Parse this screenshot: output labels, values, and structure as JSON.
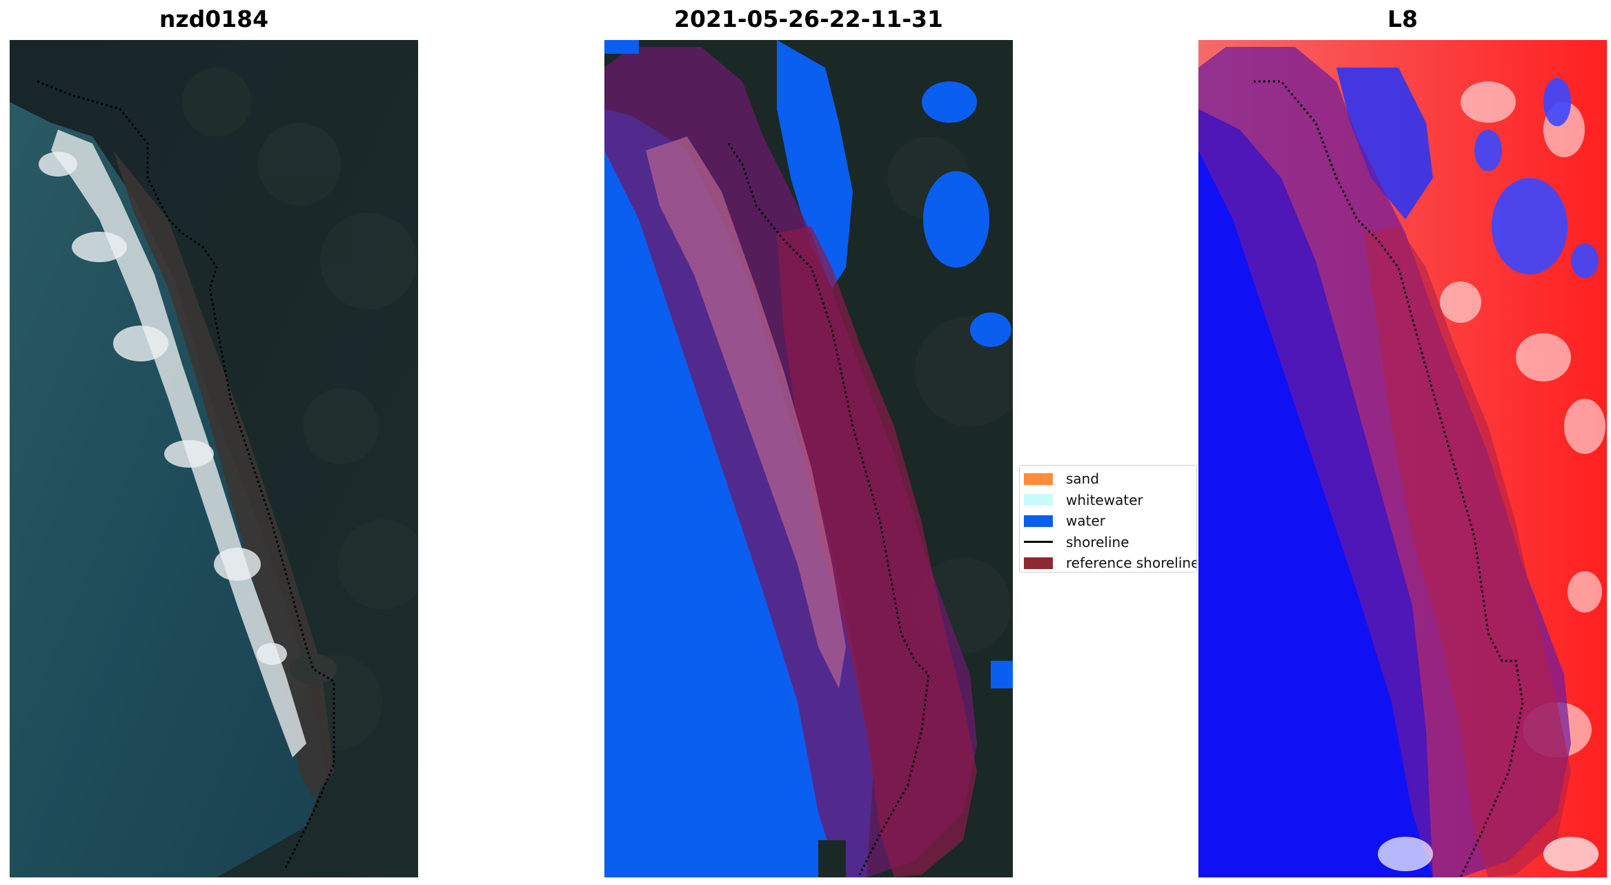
{
  "panels": {
    "rgb": {
      "title": "nzd0184"
    },
    "classification": {
      "title": "2021-05-26-22-11-31"
    },
    "index": {
      "title": "L8"
    }
  },
  "legend": {
    "items": [
      {
        "label": "sand",
        "color": "#ff8c3a",
        "kind": "patch"
      },
      {
        "label": "whitewater",
        "color": "#c8fbfb",
        "kind": "patch"
      },
      {
        "label": "water",
        "color": "#0a5ef0",
        "kind": "patch"
      },
      {
        "label": "shoreline",
        "color": "#000000",
        "kind": "line"
      },
      {
        "label": "reference shoreline buffer",
        "color": "#8b2a33",
        "kind": "patch"
      }
    ]
  },
  "colors": {
    "land_dark": "#1c2a2a",
    "ocean": "#1d4c5c",
    "surf": "#e6e9ea",
    "water_class": "#0a5ef0",
    "buffer_overlay": "#8b1a4a",
    "index_low": "#1010ff",
    "index_high": "#ff2a2a"
  }
}
